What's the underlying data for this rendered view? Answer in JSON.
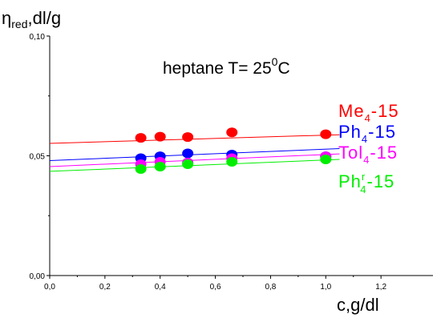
{
  "chart_data": {
    "type": "scatter",
    "ylabel_main": "η",
    "ylabel_sub": "red",
    "ylabel_units": ",dl/g",
    "xlabel": "c,g/dl",
    "annotation": {
      "pre": "heptane T= 25",
      "sup": "0",
      "post": "C"
    },
    "xlim": [
      0,
      1.4
    ],
    "ylim": [
      0,
      0.1
    ],
    "x_ticks": [
      0,
      0.2,
      0.4,
      0.6,
      0.8,
      1.0,
      1.2
    ],
    "x_tick_labels": [
      "0,0",
      "0,2",
      "0,4",
      "0,6",
      "0,8",
      "1,0",
      "1,2"
    ],
    "y_ticks": [
      0,
      0.05,
      0.1
    ],
    "y_tick_labels": [
      "0,00",
      "0,05",
      "0,10"
    ],
    "series": [
      {
        "legend": {
          "base": "Me",
          "sup": "",
          "sub": "4",
          "suffix": "-15"
        },
        "color": "#ff0000",
        "x": [
          0.33,
          0.4,
          0.5,
          0.66,
          1.0
        ],
        "y": [
          0.0575,
          0.058,
          0.0578,
          0.0598,
          0.059
        ],
        "fit": {
          "x": [
            0,
            1.05
          ],
          "y": [
            0.0552,
            0.0588
          ]
        }
      },
      {
        "legend": {
          "base": "Ph",
          "sup": "",
          "sub": "4",
          "suffix": "-15"
        },
        "color": "#0000ff",
        "x": [
          0.33,
          0.4,
          0.5,
          0.66,
          1.0
        ],
        "y": [
          0.049,
          0.0498,
          0.051,
          0.0505,
          0.0498
        ],
        "fit": {
          "x": [
            0,
            1.05
          ],
          "y": [
            0.048,
            0.053
          ]
        }
      },
      {
        "legend": {
          "base": "Tol",
          "sup": "",
          "sub": "4",
          "suffix": "-15"
        },
        "color": "#ff00ff",
        "x": [
          0.33,
          0.4,
          0.5,
          0.66,
          1.0
        ],
        "y": [
          0.0465,
          0.0475,
          0.0472,
          0.049,
          0.0498
        ],
        "fit": {
          "x": [
            0,
            1.05
          ],
          "y": [
            0.0455,
            0.0508
          ]
        }
      },
      {
        "legend": {
          "base": "Ph",
          "sup": "r",
          "sub": "4",
          "suffix": "-15"
        },
        "color": "#00ee00",
        "x": [
          0.33,
          0.4,
          0.5,
          0.66,
          1.0
        ],
        "y": [
          0.0445,
          0.0455,
          0.0465,
          0.0475,
          0.0485
        ],
        "fit": {
          "x": [
            0,
            1.05
          ],
          "y": [
            0.0435,
            0.0485
          ]
        }
      }
    ]
  }
}
